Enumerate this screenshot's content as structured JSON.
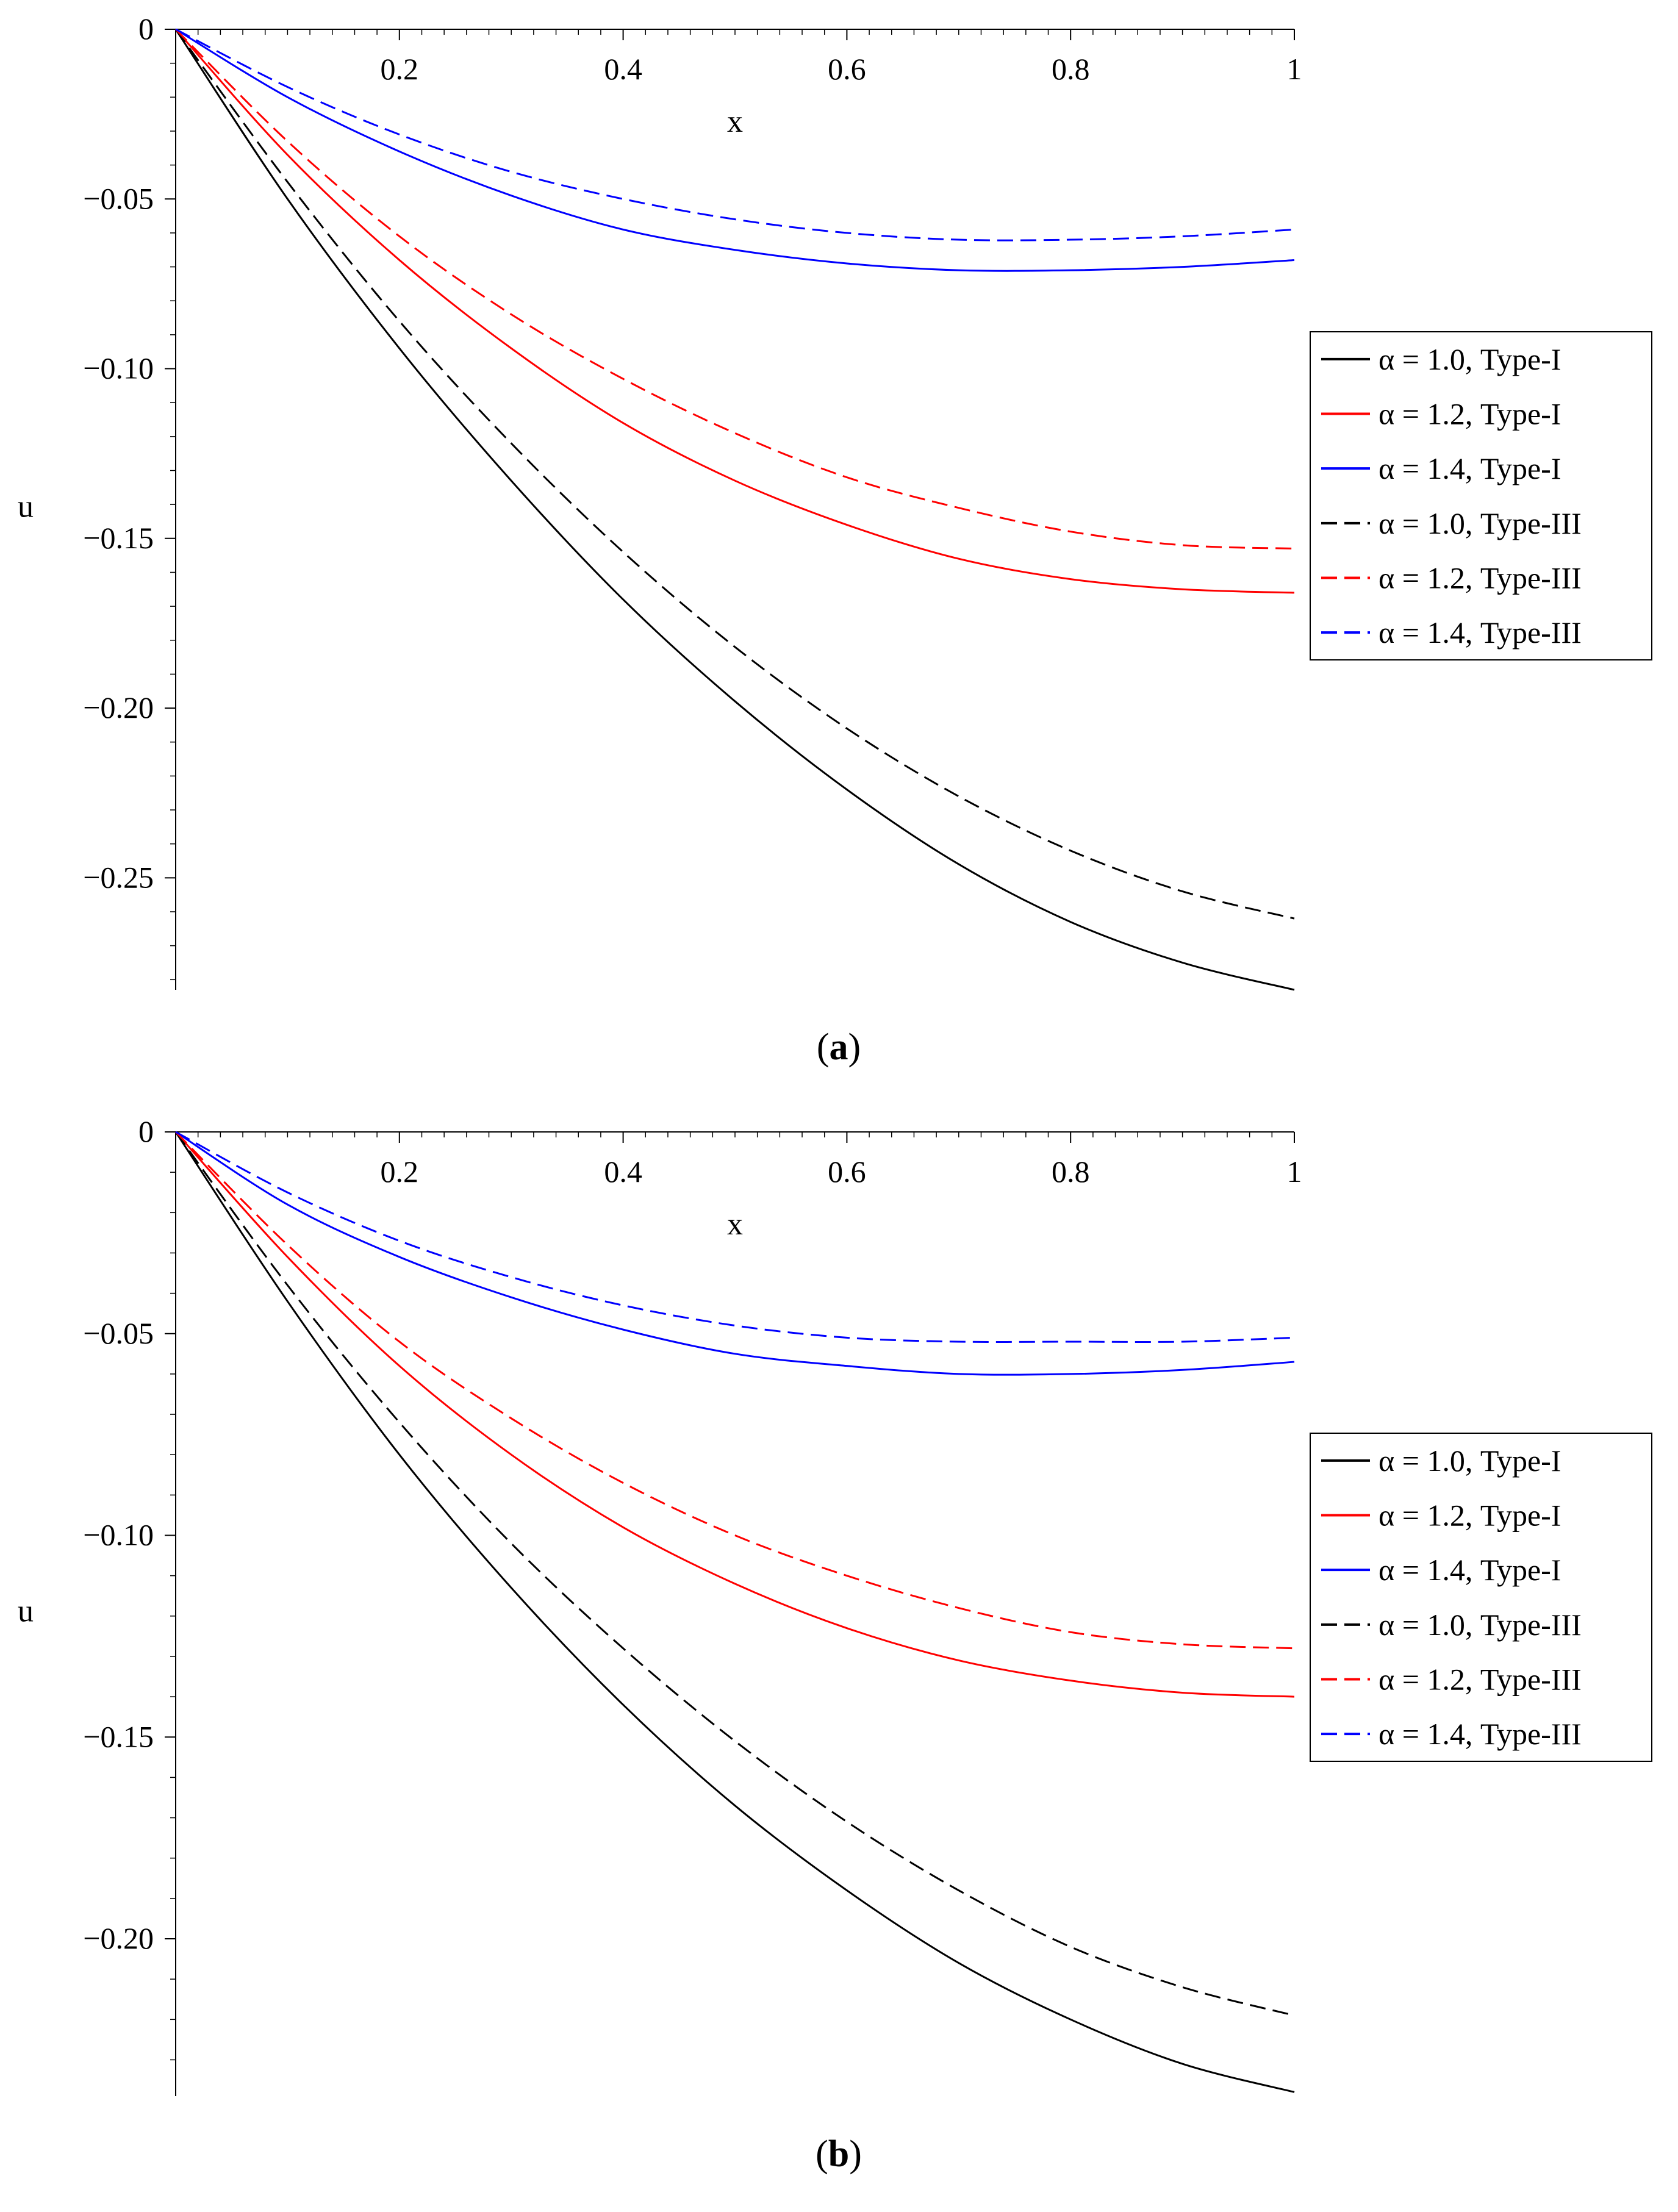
{
  "chart_data": [
    {
      "type": "line",
      "panel_label_open": "(",
      "panel_label": "a",
      "panel_label_close": ")",
      "xlabel": "x",
      "ylabel": "u",
      "xlim": [
        0,
        1
      ],
      "ylim": [
        -0.283,
        0
      ],
      "x_ticks": [
        0.2,
        0.4,
        0.6,
        0.8,
        1
      ],
      "x_tick_labels": [
        "0.2",
        "0.4",
        "0.6",
        "0.8",
        "1"
      ],
      "y_ticks": [
        0,
        -0.05,
        -0.1,
        -0.15,
        -0.2,
        -0.25
      ],
      "y_tick_labels": [
        "0",
        "−0.05",
        "−0.10",
        "−0.15",
        "−0.20",
        "−0.25"
      ],
      "legend_position": "right",
      "x": [
        0,
        0.1,
        0.2,
        0.3,
        0.4,
        0.5,
        0.6,
        0.7,
        0.8,
        0.9,
        1.0
      ],
      "series": [
        {
          "name": "α = 1.0, Type-I",
          "color": "#000000",
          "dash": "solid",
          "values": [
            0,
            -0.05,
            -0.094,
            -0.133,
            -0.168,
            -0.198,
            -0.224,
            -0.246,
            -0.263,
            -0.275,
            -0.283
          ]
        },
        {
          "name": "α = 1.2, Type-I",
          "color": "#ff0000",
          "dash": "solid",
          "values": [
            0,
            -0.037,
            -0.068,
            -0.094,
            -0.116,
            -0.133,
            -0.146,
            -0.156,
            -0.162,
            -0.165,
            -0.166
          ]
        },
        {
          "name": "α = 1.4, Type-I",
          "color": "#0000ff",
          "dash": "solid",
          "values": [
            0,
            -0.02,
            -0.036,
            -0.049,
            -0.059,
            -0.065,
            -0.069,
            -0.071,
            -0.071,
            -0.07,
            -0.068
          ]
        },
        {
          "name": "α = 1.0, Type-III",
          "color": "#000000",
          "dash": "dashed",
          "values": [
            0,
            -0.045,
            -0.086,
            -0.122,
            -0.154,
            -0.182,
            -0.206,
            -0.226,
            -0.242,
            -0.254,
            -0.262
          ]
        },
        {
          "name": "α = 1.2, Type-III",
          "color": "#ff0000",
          "dash": "dashed",
          "values": [
            0,
            -0.033,
            -0.061,
            -0.084,
            -0.103,
            -0.119,
            -0.132,
            -0.141,
            -0.148,
            -0.152,
            -0.153
          ]
        },
        {
          "name": "α = 1.4, Type-III",
          "color": "#0000ff",
          "dash": "dashed",
          "values": [
            0,
            -0.017,
            -0.031,
            -0.042,
            -0.05,
            -0.056,
            -0.06,
            -0.062,
            -0.062,
            -0.061,
            -0.059
          ]
        }
      ]
    },
    {
      "type": "line",
      "panel_label_open": "(",
      "panel_label": "b",
      "panel_label_close": ")",
      "xlabel": "x",
      "ylabel": "u",
      "xlim": [
        0,
        1
      ],
      "ylim": [
        -0.239,
        0
      ],
      "x_ticks": [
        0.2,
        0.4,
        0.6,
        0.8,
        1
      ],
      "x_tick_labels": [
        "0.2",
        "0.4",
        "0.6",
        "0.8",
        "1"
      ],
      "y_ticks": [
        0,
        -0.05,
        -0.1,
        -0.15,
        -0.2
      ],
      "y_tick_labels": [
        "0",
        "−0.05",
        "−0.10",
        "−0.15",
        "−0.20"
      ],
      "legend_position": "right",
      "x": [
        0,
        0.1,
        0.2,
        0.3,
        0.4,
        0.5,
        0.6,
        0.7,
        0.8,
        0.9,
        1.0
      ],
      "series": [
        {
          "name": "α = 1.0, Type-I",
          "color": "#000000",
          "dash": "solid",
          "values": [
            0,
            -0.042,
            -0.08,
            -0.113,
            -0.142,
            -0.167,
            -0.188,
            -0.206,
            -0.22,
            -0.231,
            -0.238
          ]
        },
        {
          "name": "α = 1.2, Type-I",
          "color": "#ff0000",
          "dash": "solid",
          "values": [
            0,
            -0.031,
            -0.058,
            -0.08,
            -0.098,
            -0.112,
            -0.123,
            -0.131,
            -0.136,
            -0.139,
            -0.14
          ]
        },
        {
          "name": "α = 1.4, Type-I",
          "color": "#0000ff",
          "dash": "solid",
          "values": [
            0,
            -0.018,
            -0.031,
            -0.041,
            -0.049,
            -0.055,
            -0.058,
            -0.06,
            -0.06,
            -0.059,
            -0.057
          ]
        },
        {
          "name": "α = 1.0, Type-III",
          "color": "#000000",
          "dash": "dashed",
          "values": [
            0,
            -0.038,
            -0.072,
            -0.102,
            -0.128,
            -0.151,
            -0.171,
            -0.188,
            -0.202,
            -0.212,
            -0.219
          ]
        },
        {
          "name": "α = 1.2, Type-III",
          "color": "#ff0000",
          "dash": "dashed",
          "values": [
            0,
            -0.028,
            -0.052,
            -0.071,
            -0.087,
            -0.1,
            -0.11,
            -0.118,
            -0.124,
            -0.127,
            -0.128
          ]
        },
        {
          "name": "α = 1.4, Type-III",
          "color": "#0000ff",
          "dash": "dashed",
          "values": [
            0,
            -0.015,
            -0.027,
            -0.036,
            -0.043,
            -0.048,
            -0.051,
            -0.052,
            -0.052,
            -0.052,
            -0.051
          ]
        }
      ]
    }
  ]
}
